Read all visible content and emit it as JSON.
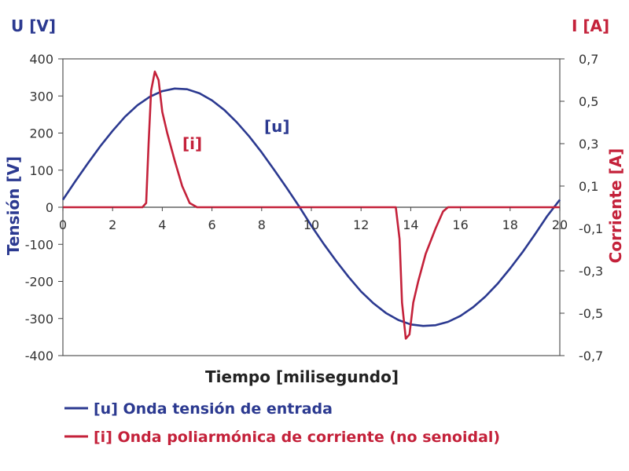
{
  "chart_data": {
    "type": "line",
    "unit_left": "U [V]",
    "unit_right": "I [A]",
    "ylabel": "Tensión [V]",
    "y2label": "Corriente [A]",
    "xlabel": "Tiempo [milisegundo]",
    "xlim": [
      0,
      20
    ],
    "ylim": [
      -400,
      400
    ],
    "y2lim": [
      -0.7,
      0.7
    ],
    "x_ticks": [
      "0",
      "2",
      "4",
      "6",
      "8",
      "10",
      "12",
      "14",
      "16",
      "18",
      "20"
    ],
    "y_ticks": [
      "400",
      "300",
      "200",
      "100",
      "0",
      "-100",
      "-200",
      "-300",
      "-400"
    ],
    "y2_ticks": [
      "0,7",
      "0,5",
      "0,3",
      "0,1",
      "-0,1",
      "-0,3",
      "-0,5",
      "-0,7"
    ],
    "grid": false,
    "legend_position": "bottom",
    "series": [
      {
        "name": "[u] Onda tensión de entrada",
        "label": "[u]",
        "axis": "left",
        "color": "#2b3990",
        "x": [
          0,
          0.5,
          1,
          1.5,
          2,
          2.5,
          3,
          3.5,
          4,
          4.5,
          5,
          5.5,
          6,
          6.5,
          7,
          7.5,
          8,
          8.5,
          9,
          9.5,
          10,
          10.5,
          11,
          11.5,
          12,
          12.5,
          13,
          13.5,
          14,
          14.5,
          15,
          15.5,
          16,
          16.5,
          17,
          17.5,
          18,
          18.5,
          19,
          19.5,
          20
        ],
        "y": [
          20,
          70,
          118,
          164,
          206,
          244,
          275,
          298,
          313,
          320,
          318,
          307,
          288,
          262,
          229,
          191,
          148,
          101,
          53,
          3,
          -50,
          -99,
          -145,
          -188,
          -227,
          -259,
          -285,
          -304,
          -316,
          -320,
          -318,
          -309,
          -293,
          -270,
          -241,
          -206,
          -165,
          -121,
          -73,
          -23,
          20
        ]
      },
      {
        "name": "[i] Onda poliarmónica de corriente (no senoidal)",
        "label": "[i]",
        "axis": "right",
        "color": "#c4213a",
        "x": [
          0,
          3.2,
          3.35,
          3.45,
          3.55,
          3.7,
          3.85,
          4.0,
          4.2,
          4.5,
          4.8,
          5.1,
          5.4,
          6,
          9,
          12,
          13.4,
          13.55,
          13.65,
          13.8,
          13.95,
          14.1,
          14.3,
          14.6,
          15.0,
          15.3,
          15.5,
          16,
          20
        ],
        "y": [
          0,
          0,
          0.02,
          0.3,
          0.55,
          0.64,
          0.6,
          0.45,
          0.35,
          0.22,
          0.1,
          0.02,
          0,
          0,
          0,
          0,
          0,
          -0.15,
          -0.45,
          -0.62,
          -0.6,
          -0.45,
          -0.35,
          -0.22,
          -0.1,
          -0.02,
          0,
          0,
          0
        ]
      }
    ]
  }
}
